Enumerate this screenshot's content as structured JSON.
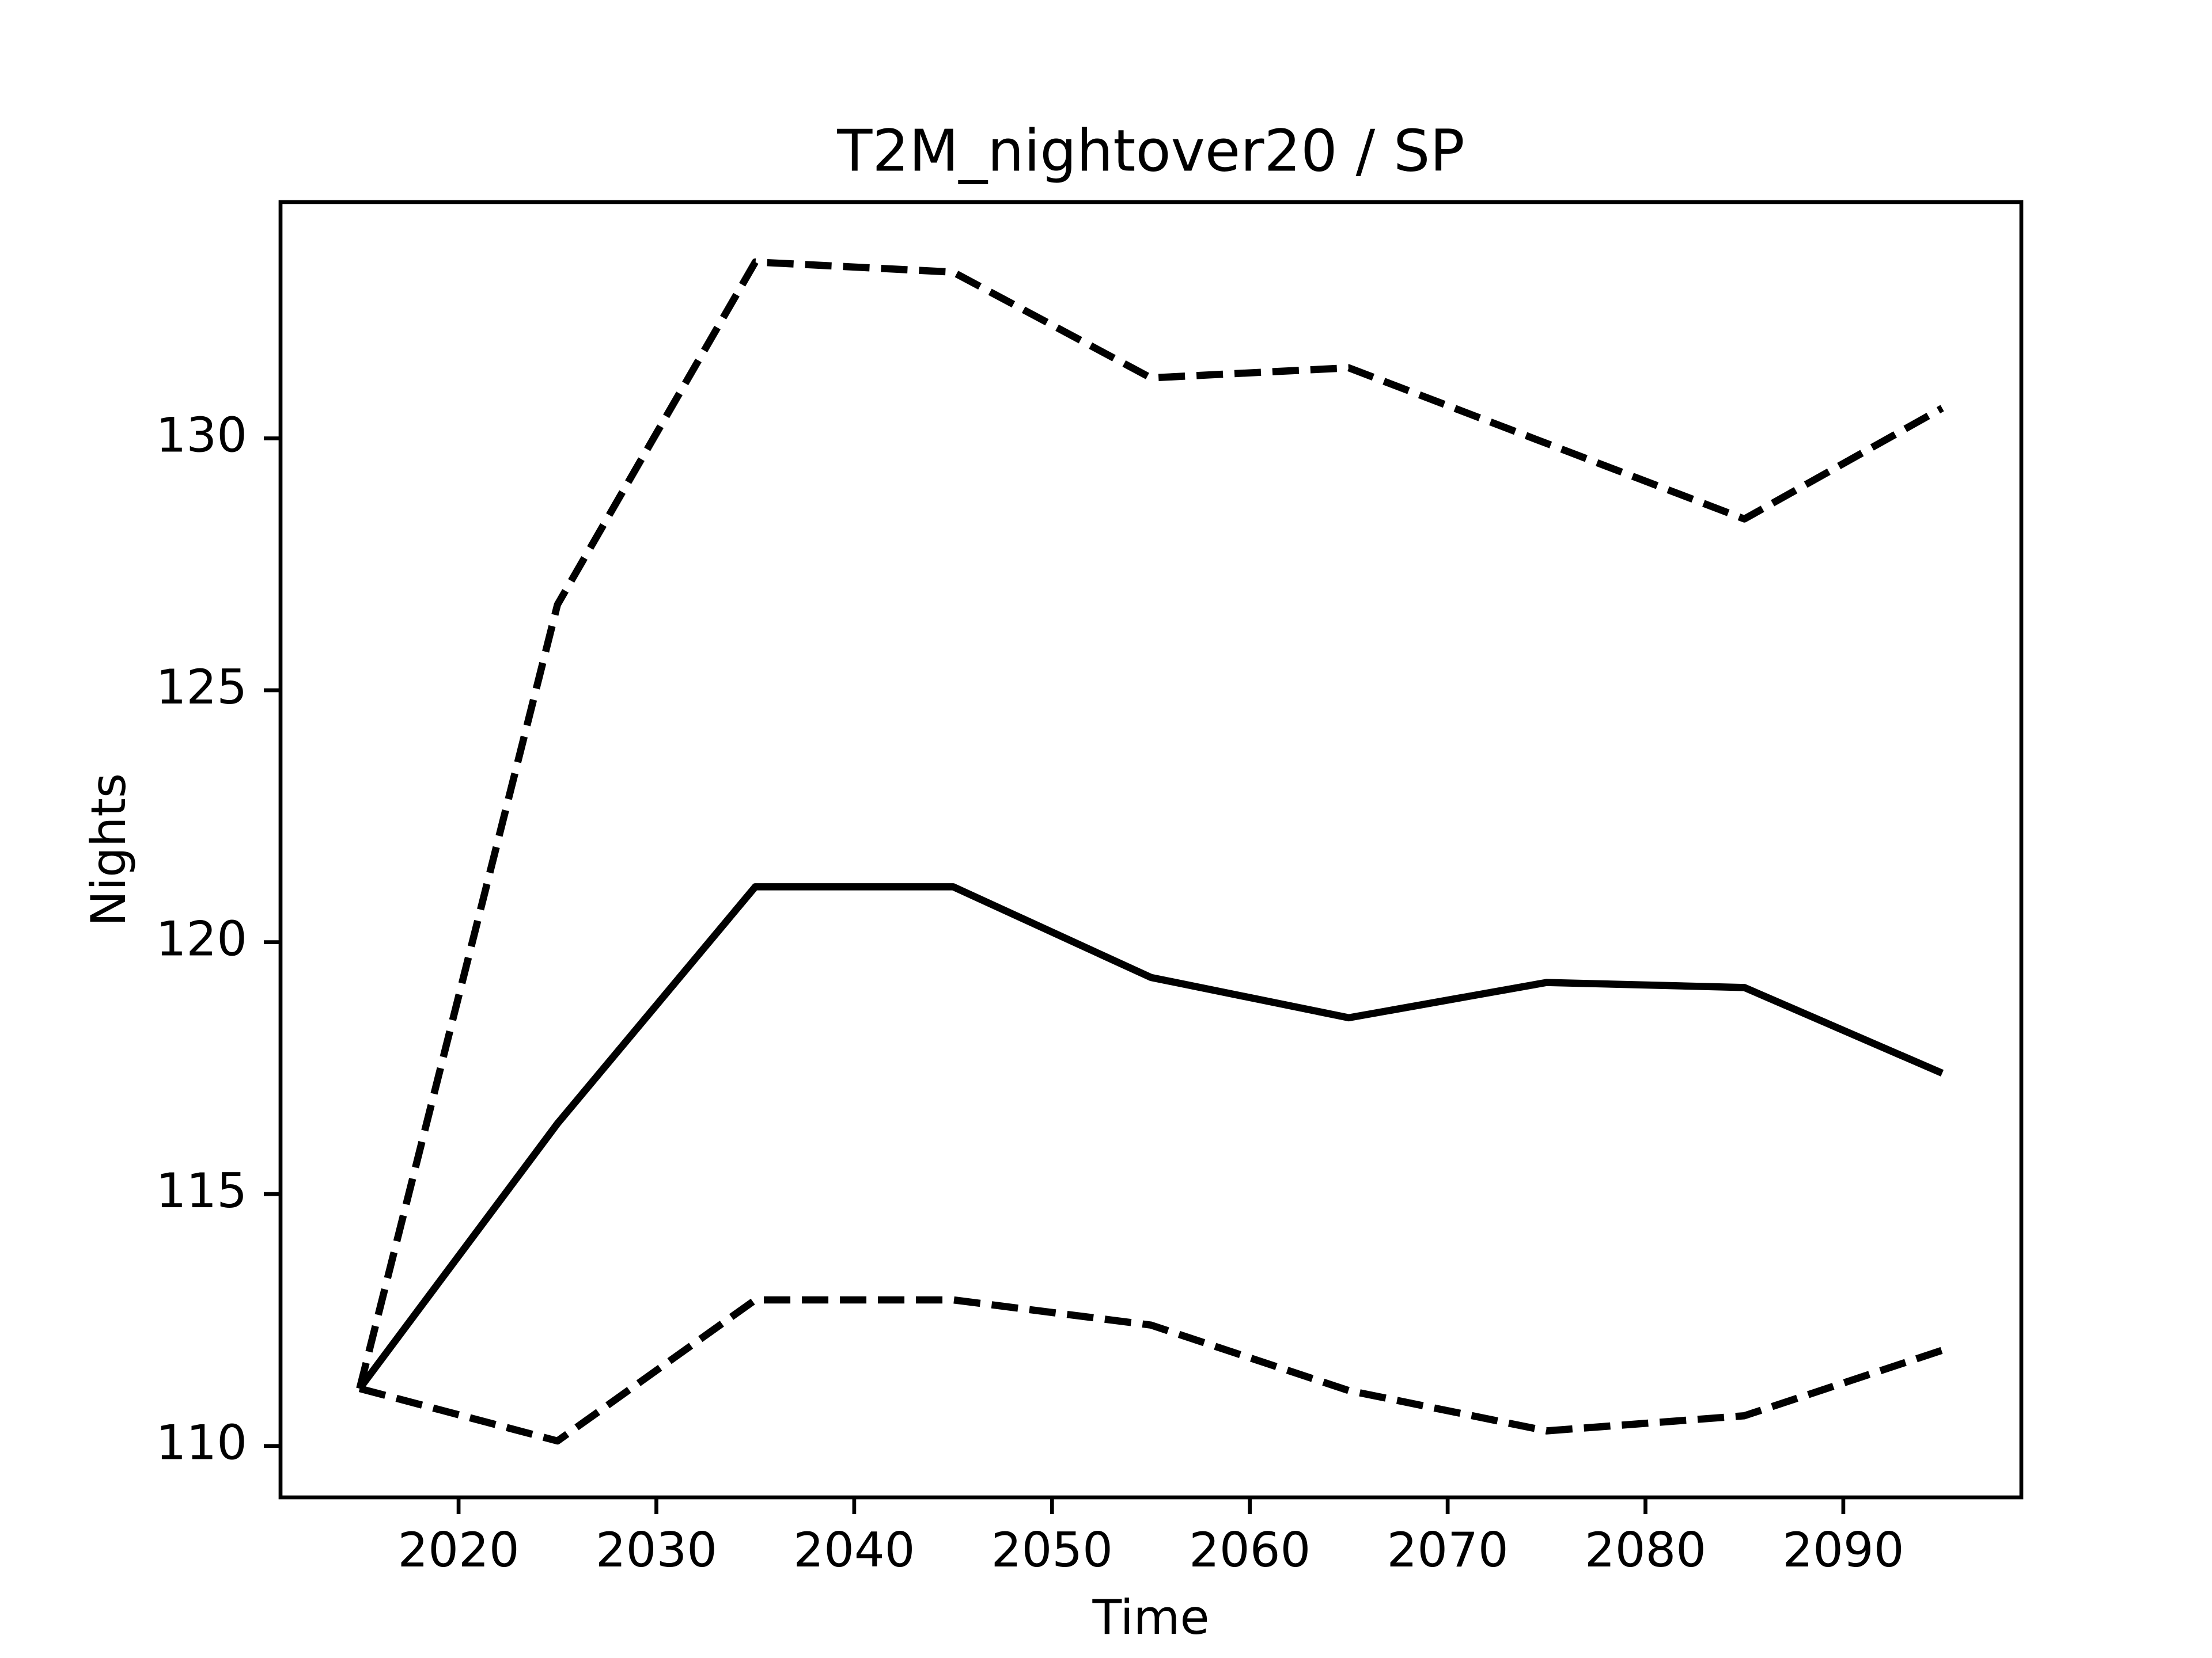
{
  "chart_data": {
    "type": "line",
    "title": "T2M_nightover20 / SP",
    "x_label": "Time",
    "y_label": "Nights",
    "x": [
      2015,
      2025,
      2035,
      2045,
      2055,
      2065,
      2075,
      2085,
      2095
    ],
    "series": [
      {
        "color": "#000000",
        "dashed": false,
        "values": [
          111.14,
          116.4,
          121.1,
          121.1,
          119.3,
          118.5,
          119.2,
          119.1,
          117.4
        ]
      },
      {
        "color": "#000000",
        "dashed": true,
        "values": [
          111.14,
          126.7,
          133.5,
          133.3,
          131.2,
          131.4,
          129.9,
          128.4,
          130.6
        ]
      },
      {
        "color": "#000000",
        "dashed": true,
        "values": [
          111.14,
          110.1,
          112.9,
          112.9,
          112.4,
          111.1,
          110.3,
          110.6,
          111.9
        ]
      }
    ],
    "xlim": [
      2011,
      2099
    ],
    "xticks": [
      2020,
      2030,
      2040,
      2050,
      2060,
      2070,
      2080,
      2090
    ],
    "ylim": [
      108.98,
      134.69
    ],
    "yticks": [
      110,
      115,
      120,
      125,
      130
    ]
  }
}
